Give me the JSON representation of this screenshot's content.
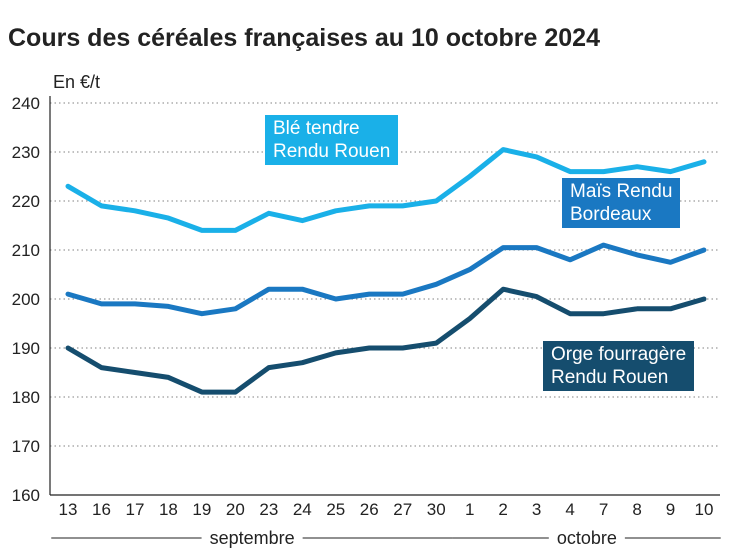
{
  "chart_data": {
    "type": "line",
    "title": "Cours des céréales françaises au 10 octobre 2024",
    "ylabel": "En €/t",
    "xlabel": "",
    "ylim": [
      160,
      240
    ],
    "yticks": [
      160,
      170,
      180,
      190,
      200,
      210,
      220,
      230,
      240
    ],
    "grid": "horizontal dotted",
    "legend": "inline labels",
    "categories": [
      "13",
      "16",
      "17",
      "18",
      "19",
      "20",
      "23",
      "24",
      "25",
      "26",
      "27",
      "30",
      "1",
      "2",
      "3",
      "4",
      "7",
      "8",
      "9",
      "10"
    ],
    "months": [
      {
        "label": "septembre",
        "from": 0,
        "to": 11
      },
      {
        "label": "octobre",
        "from": 12,
        "to": 19
      }
    ],
    "series": [
      {
        "name_lines": [
          "Blé tendre",
          "Rendu Rouen"
        ],
        "color": "#1ab0e8",
        "values": [
          223,
          219,
          218,
          216.5,
          214,
          214,
          217.5,
          216,
          218,
          219,
          219,
          220,
          225,
          230.5,
          229,
          226,
          226,
          227,
          226,
          228
        ]
      },
      {
        "name_lines": [
          "Maïs Rendu",
          "Bordeaux"
        ],
        "color": "#1a78c2",
        "values": [
          201,
          199,
          199,
          198.5,
          197,
          198,
          202,
          202,
          200,
          201,
          201,
          203,
          206,
          210.5,
          210.5,
          208,
          211,
          209,
          207.5,
          210
        ]
      },
      {
        "name_lines": [
          "Orge fourragère",
          "Rendu Rouen"
        ],
        "color": "#154d6e",
        "values": [
          190,
          186,
          185,
          184,
          181,
          181,
          186,
          187,
          189,
          190,
          190,
          191,
          196,
          202,
          200.5,
          197,
          197,
          198,
          198,
          200
        ]
      }
    ]
  }
}
